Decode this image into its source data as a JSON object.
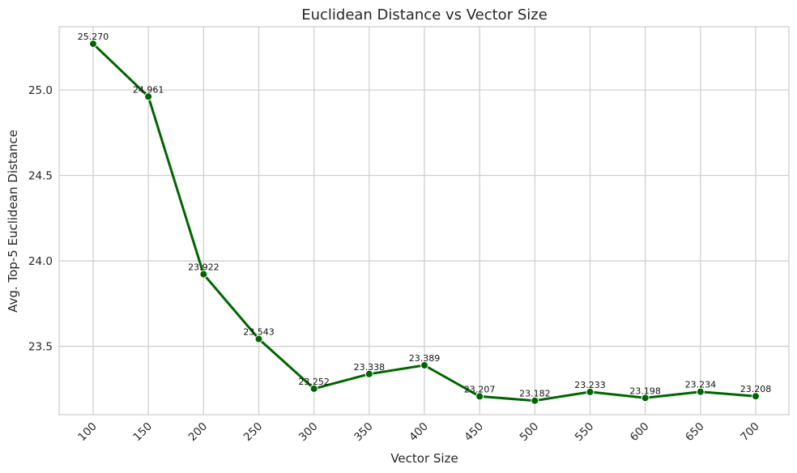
{
  "chart_data": {
    "type": "line",
    "title": "Euclidean Distance vs Vector Size",
    "xlabel": "Vector Size",
    "ylabel": "Avg. Top-5 Euclidean Distance",
    "x": [
      100,
      150,
      200,
      250,
      300,
      350,
      400,
      450,
      500,
      550,
      600,
      650,
      700
    ],
    "series": [
      {
        "values": [
          25.27,
          24.961,
          23.922,
          23.543,
          23.252,
          23.338,
          23.389,
          23.207,
          23.182,
          23.233,
          23.198,
          23.234,
          23.208
        ],
        "data_labels": [
          "25.270",
          "24.961",
          "23.922",
          "23.543",
          "23.252",
          "23.338",
          "23.389",
          "23.207",
          "23.182",
          "23.233",
          "23.198",
          "23.234",
          "23.208"
        ],
        "color": "#006400"
      }
    ],
    "x_ticks": [
      "100",
      "150",
      "200",
      "250",
      "300",
      "350",
      "400",
      "450",
      "500",
      "550",
      "600",
      "650",
      "700"
    ],
    "y_ticks": [
      23.5,
      24.0,
      24.5,
      25.0
    ],
    "y_tick_labels": [
      "23.5",
      "24.0",
      "24.5",
      "25.0"
    ],
    "ylim": [
      23.1,
      25.37
    ],
    "grid": true,
    "x_tick_rotation": "45 degrees"
  }
}
